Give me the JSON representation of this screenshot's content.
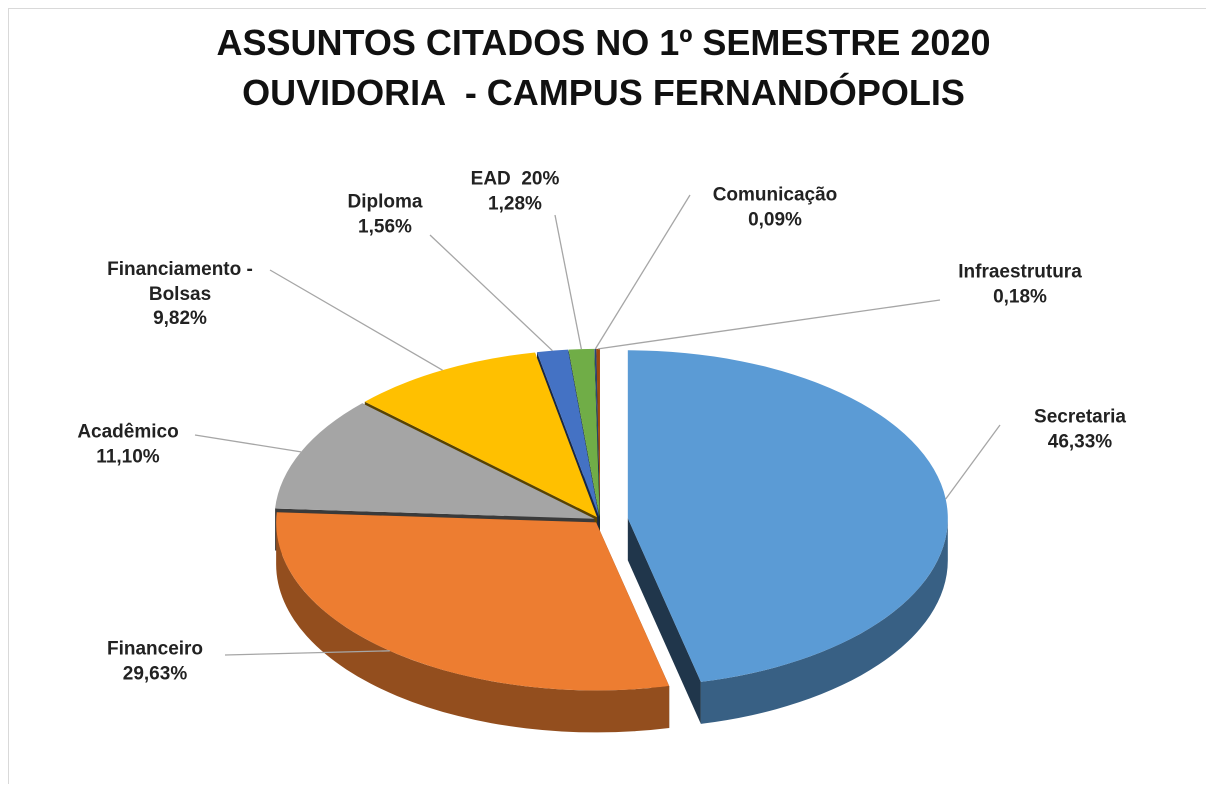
{
  "chart_data": {
    "type": "pie",
    "title": "ASSUNTOS CITADOS NO 1º SEMESTRE 2020",
    "subtitle": "OUVIDORIA  - CAMPUS FERNANDÓPOLIS",
    "categories": [
      "Secretaria",
      "Financeiro",
      "Acadêmico",
      "Financiamento - Bolsas",
      "Diploma",
      "EAD  20%",
      "Comunicação",
      "Infraestrutura"
    ],
    "values": [
      46.33,
      29.63,
      11.1,
      9.82,
      1.56,
      1.28,
      0.09,
      0.18
    ],
    "value_labels": [
      "46,33%",
      "29,63%",
      "11,10%",
      "9,82%",
      "1,56%",
      "1,28%",
      "0,09%",
      "0,18%"
    ],
    "colors": [
      "#5b9bd5",
      "#ed7d31",
      "#a5a5a5",
      "#ffc000",
      "#4472c4",
      "#70ad47",
      "#264478",
      "#9e480e"
    ]
  }
}
